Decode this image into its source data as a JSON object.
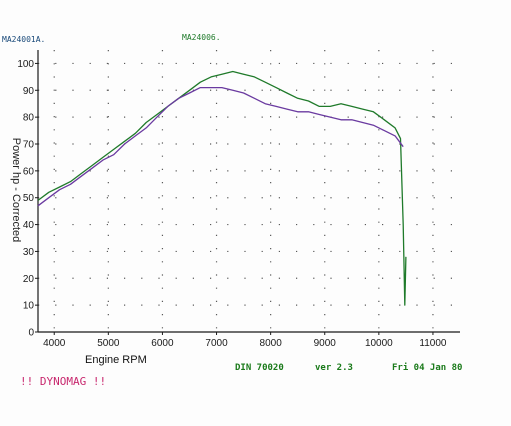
{
  "chart_data": {
    "type": "line",
    "run_labels": [
      "MA24001A.",
      "MA24006."
    ],
    "xlabel": "Engine RPM",
    "ylabel": "Power hp - Corrected",
    "xlim": [
      3700,
      11500
    ],
    "ylim": [
      0,
      105
    ],
    "xticks": [
      4000,
      5000,
      6000,
      7000,
      8000,
      9000,
      10000,
      11000
    ],
    "yticks": [
      0,
      10,
      20,
      30,
      40,
      50,
      60,
      70,
      80,
      90,
      100
    ],
    "ytick_labels": [
      "0",
      "10",
      "20",
      "30",
      "40",
      "50",
      "60",
      "70",
      "80",
      "90",
      "100"
    ],
    "grid": true,
    "series": [
      {
        "color": "#1f7a2a",
        "x": [
          3700,
          3900,
          4100,
          4300,
          4500,
          4700,
          4900,
          5100,
          5300,
          5500,
          5700,
          5900,
          6100,
          6300,
          6500,
          6700,
          6900,
          7100,
          7300,
          7500,
          7700,
          7900,
          8100,
          8300,
          8500,
          8700,
          8900,
          9100,
          9300,
          9500,
          9700,
          9900,
          10100,
          10300,
          10400,
          10450,
          10480,
          10500
        ],
        "y": [
          49,
          52,
          54,
          56,
          59,
          62,
          65,
          68,
          71,
          74,
          78,
          81,
          84,
          87,
          90,
          93,
          95,
          96,
          97,
          96,
          95,
          93,
          91,
          89,
          87,
          86,
          84,
          84,
          85,
          84,
          83,
          82,
          79,
          76,
          72,
          40,
          10,
          28
        ]
      },
      {
        "color": "#6a3aa0",
        "x": [
          3700,
          3900,
          4100,
          4300,
          4500,
          4700,
          4900,
          5100,
          5300,
          5500,
          5700,
          5900,
          6100,
          6300,
          6500,
          6700,
          6900,
          7100,
          7300,
          7500,
          7700,
          7900,
          8100,
          8300,
          8500,
          8700,
          8900,
          9100,
          9300,
          9500,
          9700,
          9900,
          10100,
          10300,
          10450
        ],
        "y": [
          47,
          50,
          53,
          55,
          58,
          61,
          64,
          66,
          70,
          73,
          76,
          80,
          84,
          87,
          89,
          91,
          91,
          91,
          90,
          89,
          87,
          85,
          84,
          83,
          82,
          82,
          81,
          80,
          79,
          79,
          78,
          77,
          75,
          73,
          69
        ]
      }
    ],
    "footer": {
      "din": "DIN 70020",
      "version": "ver 2.3",
      "date": "Fri 04 Jan 80"
    },
    "brand": "!! DYNOMAG !!"
  },
  "colors": {
    "axis": "#1a1a1a",
    "grid_dot": "#5a5a5a",
    "run1_header": "#1a4a7a",
    "run2_header": "#1f7a2a",
    "brand": "#c8286e"
  }
}
